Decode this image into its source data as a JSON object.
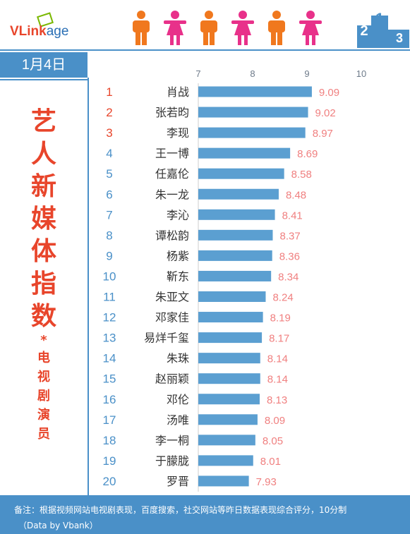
{
  "header": {
    "logo_text_red": "VL",
    "logo_text_mid": "ink",
    "logo_text_blue": "age",
    "podium_numbers": [
      "2",
      "1",
      "3"
    ],
    "date": "1月4日"
  },
  "title": {
    "main_chars": [
      "艺",
      "人",
      "新",
      "媒",
      "体",
      "指",
      "数"
    ],
    "star": "*",
    "sub_chars": [
      "电",
      "视",
      "剧",
      "演",
      "员"
    ]
  },
  "colors": {
    "accent_blue": "#4a90c8",
    "title_red": "#e8452b",
    "bar_blue": "#5b9fd1",
    "value_pink": "#f08080",
    "rank_top3": "#e8452b",
    "rank_rest": "#4a90c8",
    "person_orange": "#f0781e",
    "person_pink": "#e8318a"
  },
  "chart_data": {
    "type": "bar",
    "orientation": "horizontal",
    "xlim": [
      7,
      10
    ],
    "xticks": [
      "7",
      "8",
      "9",
      "10"
    ],
    "ranks": [
      "1",
      "2",
      "3",
      "4",
      "5",
      "6",
      "7",
      "8",
      "9",
      "10",
      "11",
      "12",
      "13",
      "14",
      "15",
      "16",
      "17",
      "18",
      "19",
      "20"
    ],
    "categories": [
      "肖战",
      "张若昀",
      "李现",
      "王一博",
      "任嘉伦",
      "朱一龙",
      "李沁",
      "谭松韵",
      "杨紫",
      "靳东",
      "朱亚文",
      "邓家佳",
      "易烊千玺",
      "朱珠",
      "赵丽颖",
      "邓伦",
      "汤唯",
      "李一桐",
      "于朦胧",
      "罗晋"
    ],
    "values": [
      9.09,
      9.02,
      8.97,
      8.69,
      8.58,
      8.48,
      8.41,
      8.37,
      8.36,
      8.34,
      8.24,
      8.19,
      8.17,
      8.14,
      8.14,
      8.13,
      8.09,
      8.05,
      8.01,
      7.93
    ],
    "value_labels": [
      "9.09",
      "9.02",
      "8.97",
      "8.69",
      "8.58",
      "8.48",
      "8.41",
      "8.37",
      "8.36",
      "8.34",
      "8.24",
      "8.19",
      "8.17",
      "8.14",
      "8.14",
      "8.13",
      "8.09",
      "8.05",
      "8.01",
      "7.93"
    ],
    "grid": false
  },
  "footer": {
    "note": "备注：根据视频网站电视剧表现，百度搜索，社交网站等昨日数据表现综合评分，10分制",
    "source": "（Data by Vbank）"
  }
}
